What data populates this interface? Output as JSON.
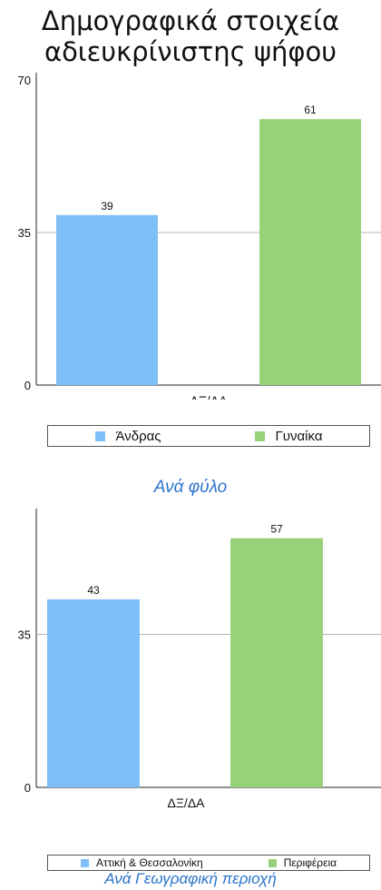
{
  "page": {
    "title_line1": "Δημογραφικά στοιχεία",
    "title_line2": "αδιευκρίνιστης ψήφου"
  },
  "colors": {
    "series_a": "#7fbff8",
    "series_b": "#97d27a",
    "caption": "#2a73c9",
    "gridline": "#9a9a9a"
  },
  "chart_data": [
    {
      "type": "bar",
      "categories": [
        "ΔΞ/ΔΑ"
      ],
      "series": [
        {
          "name": "Άνδρας",
          "values": [
            39
          ]
        },
        {
          "name": "Γυναίκα",
          "values": [
            61
          ]
        }
      ],
      "ylim": [
        0,
        70
      ],
      "yticks": [
        "0",
        "35",
        "70"
      ],
      "value_labels": [
        "39",
        "61"
      ],
      "caption": "Ανά φύλο",
      "legend": "bottom",
      "grid": "midline"
    },
    {
      "type": "bar",
      "categories": [
        "ΔΞ/ΔΑ"
      ],
      "series": [
        {
          "name": "Αττική & Θεσσαλονίκη",
          "values": [
            43
          ]
        },
        {
          "name": "Περιφέρεια",
          "values": [
            57
          ]
        }
      ],
      "ylim": [
        0,
        70
      ],
      "yticks": [
        "0",
        "35"
      ],
      "value_labels": [
        "43",
        "57"
      ],
      "caption": "Ανά Γεωγραφική περιοχή",
      "legend": "bottom",
      "grid": "midline"
    }
  ]
}
